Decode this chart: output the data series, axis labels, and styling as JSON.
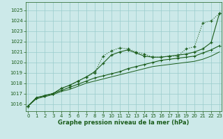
{
  "xlabel": "Graphe pression niveau de la mer (hPa)",
  "xlim": [
    -0.3,
    23.3
  ],
  "ylim": [
    1015.3,
    1025.8
  ],
  "yticks": [
    1016,
    1017,
    1018,
    1019,
    1020,
    1021,
    1022,
    1023,
    1024,
    1025
  ],
  "xticks": [
    0,
    1,
    2,
    3,
    4,
    5,
    6,
    7,
    8,
    9,
    10,
    11,
    12,
    13,
    14,
    15,
    16,
    17,
    18,
    19,
    20,
    21,
    22,
    23
  ],
  "bg_color": "#cce9e9",
  "grid_color": "#99cccc",
  "line_color": "#1a5c1a",
  "line1_y": [
    1015.8,
    1016.6,
    1016.8,
    1017.0,
    1017.5,
    1017.8,
    1018.2,
    1018.6,
    1019.0,
    1020.6,
    1021.1,
    1021.4,
    1021.3,
    1021.0,
    1020.8,
    1020.5,
    1020.5,
    1020.6,
    1020.6,
    1021.3,
    1021.5,
    1023.8,
    1024.0,
    1024.7
  ],
  "line2_y": [
    1015.8,
    1016.6,
    1016.8,
    1017.0,
    1017.5,
    1017.8,
    1018.2,
    1018.6,
    1019.1,
    1019.9,
    1020.7,
    1021.0,
    1021.2,
    1020.9,
    1020.6,
    1020.5,
    1020.5,
    1020.6,
    1020.7,
    1020.8,
    1021.0,
    1021.3,
    1021.9,
    1024.7
  ],
  "line3_y": [
    1015.8,
    1016.6,
    1016.8,
    1017.0,
    1017.3,
    1017.6,
    1017.9,
    1018.2,
    1018.5,
    1018.7,
    1018.9,
    1019.1,
    1019.4,
    1019.6,
    1019.8,
    1020.0,
    1020.2,
    1020.3,
    1020.4,
    1020.5,
    1020.6,
    1020.9,
    1021.2,
    1021.6
  ],
  "line4_y": [
    1015.8,
    1016.5,
    1016.7,
    1016.9,
    1017.2,
    1017.4,
    1017.7,
    1018.0,
    1018.2,
    1018.4,
    1018.6,
    1018.8,
    1019.0,
    1019.2,
    1019.4,
    1019.6,
    1019.7,
    1019.8,
    1019.9,
    1020.0,
    1020.1,
    1020.3,
    1020.6,
    1021.0
  ]
}
